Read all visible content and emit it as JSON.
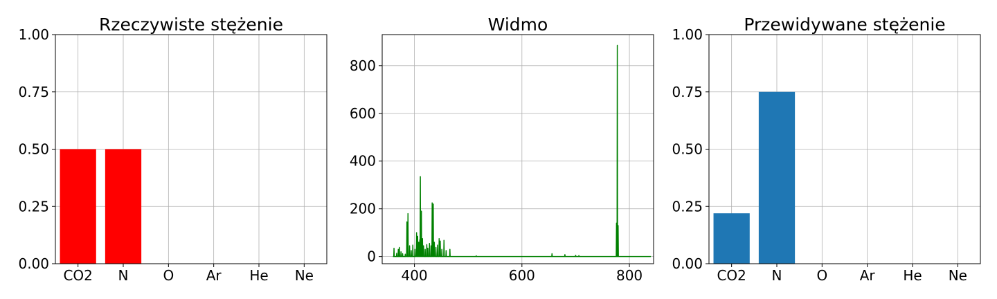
{
  "chart_data": [
    {
      "type": "bar",
      "title": "Rzeczywiste stężenie",
      "categories": [
        "CO2",
        "N",
        "O",
        "Ar",
        "He",
        "Ne"
      ],
      "values": [
        0.5,
        0.5,
        0,
        0,
        0,
        0
      ],
      "ylim": [
        0,
        1
      ],
      "yticks": [
        "0.00",
        "0.25",
        "0.50",
        "0.75",
        "1.00"
      ],
      "color": "#ff0000",
      "grid": true
    },
    {
      "type": "line",
      "title": "Widmo",
      "xlim": [
        340,
        845
      ],
      "ylim": [
        -30,
        930
      ],
      "xticks": [
        400,
        600,
        800
      ],
      "yticks": [
        0,
        200,
        400,
        600,
        800
      ],
      "color": "#008000",
      "grid": true,
      "baseline": {
        "x_start": 360,
        "x_end": 840,
        "y": 0
      },
      "peaks": [
        [
          362,
          35
        ],
        [
          367,
          14
        ],
        [
          370,
          30
        ],
        [
          372,
          38
        ],
        [
          375,
          20
        ],
        [
          378,
          12
        ],
        [
          383,
          10
        ],
        [
          386,
          145
        ],
        [
          388,
          180
        ],
        [
          391,
          45
        ],
        [
          394,
          25
        ],
        [
          397,
          48
        ],
        [
          401,
          30
        ],
        [
          404,
          100
        ],
        [
          406,
          85
        ],
        [
          408,
          60
        ],
        [
          410,
          70
        ],
        [
          411,
          335
        ],
        [
          413,
          190
        ],
        [
          415,
          75
        ],
        [
          417,
          45
        ],
        [
          420,
          30
        ],
        [
          423,
          50
        ],
        [
          425,
          35
        ],
        [
          428,
          55
        ],
        [
          431,
          45
        ],
        [
          433,
          225
        ],
        [
          435,
          220
        ],
        [
          437,
          60
        ],
        [
          440,
          38
        ],
        [
          443,
          48
        ],
        [
          446,
          75
        ],
        [
          448,
          65
        ],
        [
          451,
          30
        ],
        [
          455,
          68
        ],
        [
          459,
          25
        ],
        [
          466,
          30
        ],
        [
          515,
          3
        ],
        [
          656,
          12
        ],
        [
          680,
          8
        ],
        [
          700,
          5
        ],
        [
          706,
          4
        ],
        [
          776,
          140
        ],
        [
          777.5,
          885
        ],
        [
          779,
          130
        ]
      ]
    },
    {
      "type": "bar",
      "title": "Przewidywane stężenie",
      "categories": [
        "CO2",
        "N",
        "O",
        "Ar",
        "He",
        "Ne"
      ],
      "values": [
        0.22,
        0.75,
        0,
        0,
        0,
        0
      ],
      "ylim": [
        0,
        1
      ],
      "yticks": [
        "0.00",
        "0.25",
        "0.50",
        "0.75",
        "1.00"
      ],
      "color": "#1f77b4",
      "grid": true
    }
  ]
}
